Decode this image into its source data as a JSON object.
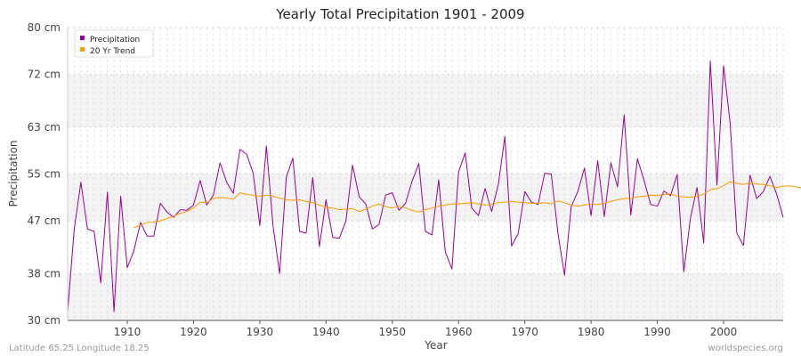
{
  "chart_data": {
    "type": "line",
    "title": "Yearly Total Precipitation 1901 - 2009",
    "xlabel": "Year",
    "ylabel": "Precipitation",
    "xlim": [
      1901,
      2009
    ],
    "ylim": [
      30,
      80
    ],
    "y_ticks": [
      {
        "value": 30,
        "label": "30 cm"
      },
      {
        "value": 38,
        "label": "38 cm"
      },
      {
        "value": 47,
        "label": "47 cm"
      },
      {
        "value": 55,
        "label": "55 cm"
      },
      {
        "value": 63,
        "label": "63 cm"
      },
      {
        "value": 72,
        "label": "72 cm"
      },
      {
        "value": 80,
        "label": "80 cm"
      }
    ],
    "x_ticks": [
      1910,
      1920,
      1930,
      1940,
      1950,
      1960,
      1970,
      1980,
      1990,
      2000
    ],
    "grid": true,
    "legend_position": "top-left",
    "series": [
      {
        "name": "Precipitation",
        "color": "#990099",
        "x_start": 1901,
        "values": [
          31.5,
          45.6,
          53.6,
          45.6,
          45.2,
          36.4,
          51.9,
          31.5,
          51.2,
          39.0,
          41.9,
          46.7,
          44.4,
          44.4,
          50.0,
          48.5,
          47.6,
          48.9,
          48.8,
          49.7,
          53.9,
          49.7,
          51.4,
          56.9,
          53.6,
          51.7,
          59.2,
          58.4,
          55.2,
          46.2,
          59.8,
          46.1,
          38.0,
          54.5,
          57.7,
          45.2,
          44.9,
          54.4,
          42.6,
          50.6,
          44.2,
          44.0,
          47.0,
          56.5,
          51.1,
          49.9,
          45.6,
          46.4,
          51.4,
          51.8,
          48.8,
          50.0,
          53.8,
          56.8,
          45.2,
          44.6,
          54.0,
          41.7,
          38.8,
          55.3,
          58.6,
          49.2,
          47.9,
          52.5,
          48.6,
          53.2,
          61.4,
          42.7,
          44.8,
          52.0,
          50.2,
          49.8,
          55.1,
          55.0,
          44.9,
          37.7,
          49.4,
          52.0,
          56.0,
          47.9,
          57.3,
          47.7,
          56.9,
          52.8,
          65.1,
          48.0,
          57.6,
          53.9,
          49.8,
          49.5,
          52.1,
          51.3,
          54.9,
          38.3,
          47.5,
          52.7,
          43.2,
          74.3,
          53.1,
          73.5,
          63.7,
          44.9,
          42.8,
          54.8,
          50.8,
          52.0,
          54.6,
          51.6,
          47.6
        ]
      },
      {
        "name": "20 Yr Trend",
        "color": "#ff9900",
        "x_start": 1911,
        "values": [
          45.8,
          46.3,
          46.7,
          46.8,
          47.0,
          47.4,
          47.8,
          48.3,
          48.6,
          49.2,
          50.2,
          50.1,
          50.8,
          51.0,
          50.9,
          50.7,
          51.8,
          51.5,
          51.4,
          51.2,
          51.4,
          51.2,
          50.9,
          50.6,
          50.5,
          50.6,
          50.3,
          50.1,
          49.7,
          49.3,
          49.2,
          48.9,
          49.0,
          49.1,
          48.6,
          49.0,
          49.5,
          49.9,
          49.4,
          49.2,
          49.5,
          49.2,
          48.8,
          48.5,
          48.9,
          49.2,
          49.5,
          49.7,
          49.9,
          49.9,
          50.0,
          50.1,
          49.9,
          49.7,
          49.8,
          50.1,
          50.2,
          50.3,
          50.2,
          50.1,
          50.0,
          50.0,
          50.1,
          49.9,
          50.4,
          50.1,
          49.7,
          49.5,
          49.7,
          49.9,
          49.8,
          50.0,
          50.3,
          50.6,
          50.8,
          50.8,
          51.1,
          51.2,
          51.4,
          51.3,
          51.5,
          51.6,
          51.2,
          51.1,
          51.0,
          51.2,
          51.6,
          52.3,
          52.5,
          53.0,
          53.7,
          53.4,
          53.2,
          53.5,
          53.3,
          53.2,
          53.0,
          52.7,
          52.9,
          53.0,
          52.8,
          52.5
        ]
      }
    ]
  },
  "footer": {
    "left": "Latitude 65.25 Longitude 18.25",
    "right": "worldspecies.org"
  }
}
